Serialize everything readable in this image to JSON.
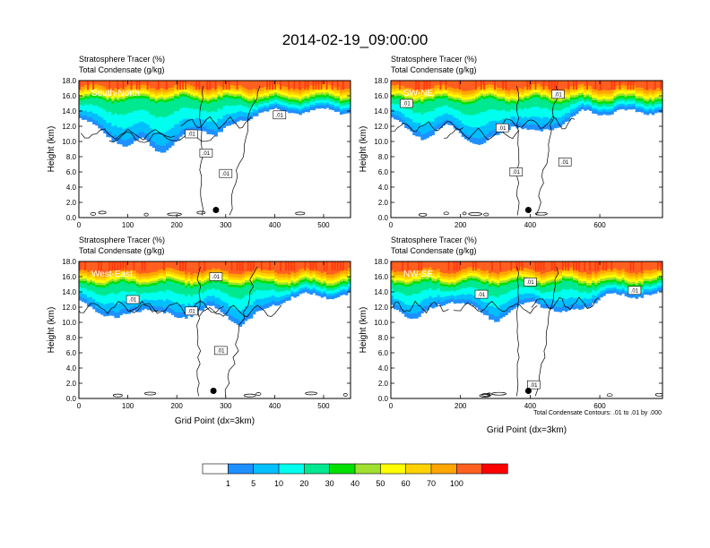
{
  "title": "2014-02-19_09:00:00",
  "panel_title_line1": "Stratosphere Tracer   (%)",
  "panel_title_line2": "Total Condensate   (g/kg)",
  "ylabel": "Height (km)",
  "xlabel": "Grid Point (dx=3km)",
  "contour_note": "Total Condensate Contours: .01 to .01 by .000",
  "contour_label": ".01",
  "chart_data": [
    {
      "type": "heatmap",
      "section": "South-North",
      "xlim": [
        0,
        555
      ],
      "ylim": [
        0,
        18
      ],
      "xticks": [
        0,
        100,
        200,
        300,
        400,
        500
      ],
      "yticks": [
        "0.0",
        "2.0",
        "4.0",
        "6.0",
        "8.0",
        "10.0",
        "12.0",
        "14.0",
        "16.0",
        "18.0"
      ],
      "marker_x": 280,
      "marker_y": 1.0,
      "tracer_base_km": 16.3,
      "shield_cores": [
        [
          100,
          12.0,
          80
        ],
        [
          170,
          11.5,
          90
        ],
        [
          280,
          13.5,
          60
        ]
      ],
      "contour_labels": [
        [
          410,
          13.5
        ],
        [
          230,
          11.0
        ],
        [
          260,
          8.5
        ],
        [
          300,
          5.8
        ]
      ]
    },
    {
      "type": "heatmap",
      "section": "SW-NE",
      "xlim": [
        0,
        780
      ],
      "ylim": [
        0,
        18
      ],
      "xticks": [
        0,
        200,
        400,
        600
      ],
      "yticks": [
        "0.0",
        "2.0",
        "4.0",
        "6.0",
        "8.0",
        "10.0",
        "12.0",
        "14.0",
        "16.0",
        "18.0"
      ],
      "marker_x": 395,
      "marker_y": 1.0,
      "tracer_base_km": 16.2,
      "shield_cores": [
        [
          100,
          13.0,
          90
        ],
        [
          260,
          12.0,
          90
        ],
        [
          420,
          13.5,
          90
        ]
      ],
      "contour_labels": [
        [
          45,
          15.0
        ],
        [
          320,
          11.8
        ],
        [
          480,
          16.2
        ],
        [
          360,
          6.0
        ],
        [
          500,
          7.3
        ]
      ]
    },
    {
      "type": "heatmap",
      "section": "West-East",
      "xlim": [
        0,
        555
      ],
      "ylim": [
        0,
        18
      ],
      "xticks": [
        0,
        100,
        200,
        300,
        400,
        500
      ],
      "yticks": [
        "0.0",
        "2.0",
        "4.0",
        "6.0",
        "8.0",
        "10.0",
        "12.0",
        "14.0",
        "16.0",
        "18.0"
      ],
      "marker_x": 275,
      "marker_y": 1.0,
      "tracer_base_km": 15.8,
      "shield_cores": [
        [
          80,
          13.0,
          70
        ],
        [
          200,
          13.0,
          80
        ],
        [
          330,
          12.5,
          70
        ]
      ],
      "contour_labels": [
        [
          110,
          13.0
        ],
        [
          230,
          11.5
        ],
        [
          280,
          16.0
        ],
        [
          290,
          6.3
        ]
      ]
    },
    {
      "type": "heatmap",
      "section": "NW-SE",
      "xlim": [
        0,
        780
      ],
      "ylim": [
        0,
        18
      ],
      "xticks": [
        0,
        200,
        400,
        600
      ],
      "yticks": [
        "0.0",
        "2.0",
        "4.0",
        "6.0",
        "8.0",
        "10.0",
        "12.0",
        "14.0",
        "16.0",
        "18.0"
      ],
      "marker_x": 395,
      "marker_y": 1.0,
      "tracer_base_km": 15.9,
      "shield_cores": [
        [
          70,
          13.0,
          80
        ],
        [
          300,
          13.0,
          100
        ],
        [
          500,
          13.5,
          80
        ]
      ],
      "contour_labels": [
        [
          260,
          13.7
        ],
        [
          400,
          15.3
        ],
        [
          700,
          14.2
        ],
        [
          410,
          1.8
        ]
      ]
    }
  ],
  "colorbar": {
    "levels": [
      "1",
      "5",
      "10",
      "20",
      "30",
      "40",
      "50",
      "60",
      "70",
      "100"
    ],
    "colors": [
      "#ffffff",
      "#1e90ff",
      "#00bfff",
      "#00ffee",
      "#00e890",
      "#00e000",
      "#a0e030",
      "#ffff00",
      "#ffd200",
      "#ffa500",
      "#ff6020",
      "#ff0000"
    ]
  }
}
